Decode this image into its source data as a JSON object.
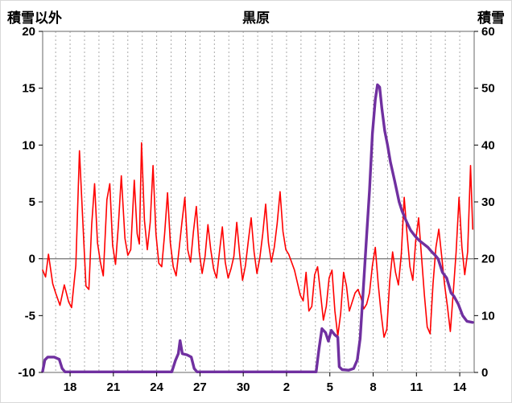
{
  "chart_data": {
    "type": "line",
    "title": "黒原",
    "grid": "vertical-dashed-daily",
    "legend": "none",
    "left_axis": {
      "label": "積雪以外",
      "min": -10,
      "max": 20,
      "ticks": [
        20,
        15,
        10,
        5,
        0,
        -5,
        -10
      ]
    },
    "right_axis": {
      "label": "積雪",
      "min": 0,
      "max": 60,
      "ticks": [
        60,
        50,
        40,
        30,
        20,
        10,
        0
      ]
    },
    "x_axis": {
      "domain": [
        16.1,
        46.0
      ],
      "gridline_step": 1,
      "tick_values": [
        18,
        21,
        24,
        27,
        30,
        33,
        36,
        39,
        42,
        45
      ],
      "tick_labels": [
        "18",
        "21",
        "24",
        "27",
        "30",
        "2",
        "5",
        "8",
        "11",
        "14"
      ]
    },
    "zero_line": {
      "value": 0,
      "axis": "left",
      "color": "#808080"
    },
    "colors": {
      "grid": "#aaaaaa",
      "border": "#808080",
      "red_series": "#ff0000",
      "purple_series": "#7030a0"
    },
    "series": [
      {
        "id": "non-snow-series",
        "name": "積雪以外",
        "axis": "left",
        "color": "#ff0000",
        "width": 1.6,
        "points": [
          [
            16.1,
            -1.0
          ],
          [
            16.3,
            -1.6
          ],
          [
            16.5,
            0.4
          ],
          [
            16.8,
            -2.2
          ],
          [
            17.0,
            -3.0
          ],
          [
            17.3,
            -4.1
          ],
          [
            17.6,
            -2.3
          ],
          [
            17.9,
            -3.8
          ],
          [
            18.1,
            -4.3
          ],
          [
            18.4,
            -0.6
          ],
          [
            18.65,
            9.5
          ],
          [
            18.9,
            2.8
          ],
          [
            19.1,
            -2.4
          ],
          [
            19.3,
            -2.7
          ],
          [
            19.5,
            3.0
          ],
          [
            19.7,
            6.6
          ],
          [
            19.9,
            1.4
          ],
          [
            20.1,
            -0.3
          ],
          [
            20.3,
            -1.5
          ],
          [
            20.55,
            5.2
          ],
          [
            20.75,
            6.6
          ],
          [
            20.95,
            1.2
          ],
          [
            21.15,
            -0.5
          ],
          [
            21.35,
            3.0
          ],
          [
            21.55,
            7.3
          ],
          [
            21.8,
            1.8
          ],
          [
            22.0,
            0.3
          ],
          [
            22.2,
            0.8
          ],
          [
            22.45,
            6.9
          ],
          [
            22.65,
            2.2
          ],
          [
            22.8,
            1.3
          ],
          [
            22.95,
            10.2
          ],
          [
            23.15,
            3.4
          ],
          [
            23.35,
            0.8
          ],
          [
            23.55,
            3.2
          ],
          [
            23.75,
            8.2
          ],
          [
            23.95,
            2.2
          ],
          [
            24.15,
            -0.4
          ],
          [
            24.35,
            -0.7
          ],
          [
            24.55,
            2.2
          ],
          [
            24.75,
            5.8
          ],
          [
            24.95,
            1.4
          ],
          [
            25.15,
            -0.7
          ],
          [
            25.35,
            -1.5
          ],
          [
            25.55,
            0.8
          ],
          [
            25.75,
            3.2
          ],
          [
            25.95,
            5.4
          ],
          [
            26.15,
            0.8
          ],
          [
            26.35,
            -0.3
          ],
          [
            26.55,
            2.4
          ],
          [
            26.75,
            4.6
          ],
          [
            26.95,
            0.6
          ],
          [
            27.15,
            -1.3
          ],
          [
            27.35,
            0.2
          ],
          [
            27.55,
            3.0
          ],
          [
            27.75,
            0.8
          ],
          [
            27.95,
            -0.9
          ],
          [
            28.15,
            -1.7
          ],
          [
            28.35,
            0.6
          ],
          [
            28.55,
            2.8
          ],
          [
            28.75,
            -0.3
          ],
          [
            28.95,
            -1.7
          ],
          [
            29.15,
            -0.9
          ],
          [
            29.35,
            0.2
          ],
          [
            29.55,
            3.2
          ],
          [
            29.75,
            0.4
          ],
          [
            29.95,
            -1.9
          ],
          [
            30.15,
            -0.6
          ],
          [
            30.35,
            1.6
          ],
          [
            30.55,
            3.6
          ],
          [
            30.75,
            0.6
          ],
          [
            30.95,
            -1.3
          ],
          [
            31.15,
            0.1
          ],
          [
            31.35,
            2.2
          ],
          [
            31.55,
            4.8
          ],
          [
            31.75,
            1.4
          ],
          [
            31.95,
            -0.3
          ],
          [
            32.15,
            1.0
          ],
          [
            32.35,
            3.1
          ],
          [
            32.55,
            5.9
          ],
          [
            32.75,
            2.4
          ],
          [
            32.95,
            0.8
          ],
          [
            33.15,
            0.4
          ],
          [
            33.35,
            -0.3
          ],
          [
            33.55,
            -1.0
          ],
          [
            33.75,
            -2.1
          ],
          [
            33.95,
            -3.2
          ],
          [
            34.15,
            -3.7
          ],
          [
            34.35,
            -1.2
          ],
          [
            34.55,
            -4.6
          ],
          [
            34.75,
            -4.2
          ],
          [
            34.95,
            -1.4
          ],
          [
            35.15,
            -0.7
          ],
          [
            35.35,
            -3.0
          ],
          [
            35.55,
            -5.4
          ],
          [
            35.75,
            -4.2
          ],
          [
            35.95,
            -1.7
          ],
          [
            36.15,
            -1.0
          ],
          [
            36.35,
            -4.6
          ],
          [
            36.55,
            -6.8
          ],
          [
            36.75,
            -4.8
          ],
          [
            36.95,
            -1.2
          ],
          [
            37.15,
            -2.4
          ],
          [
            37.35,
            -4.6
          ],
          [
            37.55,
            -3.8
          ],
          [
            37.75,
            -3.0
          ],
          [
            37.95,
            -2.7
          ],
          [
            38.15,
            -3.4
          ],
          [
            38.35,
            -4.4
          ],
          [
            38.55,
            -4.0
          ],
          [
            38.75,
            -3.0
          ],
          [
            38.95,
            -0.6
          ],
          [
            39.15,
            1.0
          ],
          [
            39.35,
            -2.2
          ],
          [
            39.55,
            -4.8
          ],
          [
            39.75,
            -6.9
          ],
          [
            39.95,
            -6.2
          ],
          [
            40.15,
            -2.0
          ],
          [
            40.35,
            0.6
          ],
          [
            40.55,
            -1.2
          ],
          [
            40.75,
            -2.3
          ],
          [
            40.95,
            0.4
          ],
          [
            41.15,
            5.4
          ],
          [
            41.35,
            2.2
          ],
          [
            41.55,
            -0.7
          ],
          [
            41.75,
            -1.9
          ],
          [
            41.95,
            1.6
          ],
          [
            42.15,
            3.6
          ],
          [
            42.35,
            0.2
          ],
          [
            42.55,
            -3.2
          ],
          [
            42.75,
            -6.0
          ],
          [
            42.95,
            -6.6
          ],
          [
            43.15,
            -2.2
          ],
          [
            43.35,
            1.0
          ],
          [
            43.55,
            2.6
          ],
          [
            43.75,
            0.2
          ],
          [
            43.95,
            -2.3
          ],
          [
            44.15,
            -4.2
          ],
          [
            44.35,
            -6.4
          ],
          [
            44.55,
            -3.0
          ],
          [
            44.75,
            0.6
          ],
          [
            44.95,
            5.4
          ],
          [
            45.15,
            1.0
          ],
          [
            45.35,
            -1.4
          ],
          [
            45.55,
            0.6
          ],
          [
            45.75,
            8.2
          ],
          [
            45.9,
            2.6
          ]
        ]
      },
      {
        "id": "snow-series",
        "name": "積雪",
        "axis": "right",
        "color": "#7030a0",
        "width": 3.4,
        "points": [
          [
            16.1,
            0.2
          ],
          [
            16.25,
            2.2
          ],
          [
            16.45,
            2.7
          ],
          [
            16.9,
            2.7
          ],
          [
            17.25,
            2.3
          ],
          [
            17.45,
            0.7
          ],
          [
            17.65,
            0.1
          ],
          [
            25.05,
            0.1
          ],
          [
            25.3,
            2.1
          ],
          [
            25.5,
            3.3
          ],
          [
            25.62,
            5.6
          ],
          [
            25.78,
            3.3
          ],
          [
            26.1,
            3.1
          ],
          [
            26.4,
            2.7
          ],
          [
            26.6,
            0.7
          ],
          [
            26.8,
            0.1
          ],
          [
            35.05,
            0.1
          ],
          [
            35.25,
            4.2
          ],
          [
            35.45,
            7.7
          ],
          [
            35.7,
            7.0
          ],
          [
            35.9,
            5.5
          ],
          [
            36.1,
            7.4
          ],
          [
            36.35,
            6.6
          ],
          [
            36.55,
            6.2
          ],
          [
            36.65,
            1.0
          ],
          [
            36.85,
            0.5
          ],
          [
            37.3,
            0.4
          ],
          [
            37.65,
            0.7
          ],
          [
            37.9,
            2.2
          ],
          [
            38.1,
            6.0
          ],
          [
            38.3,
            14.0
          ],
          [
            38.55,
            24.0
          ],
          [
            38.75,
            32.0
          ],
          [
            38.95,
            42.0
          ],
          [
            39.15,
            48.0
          ],
          [
            39.3,
            50.6
          ],
          [
            39.45,
            50.2
          ],
          [
            39.6,
            46.5
          ],
          [
            39.8,
            42.5
          ],
          [
            40.0,
            40.0
          ],
          [
            40.2,
            37.0
          ],
          [
            40.5,
            33.6
          ],
          [
            40.8,
            30.0
          ],
          [
            41.0,
            28.4
          ],
          [
            41.3,
            26.6
          ],
          [
            41.6,
            25.0
          ],
          [
            41.9,
            24.0
          ],
          [
            42.2,
            23.2
          ],
          [
            42.5,
            22.6
          ],
          [
            42.8,
            22.0
          ],
          [
            43.0,
            21.4
          ],
          [
            43.3,
            20.6
          ],
          [
            43.5,
            20.0
          ],
          [
            43.8,
            17.6
          ],
          [
            44.1,
            16.6
          ],
          [
            44.4,
            14.0
          ],
          [
            44.6,
            13.4
          ],
          [
            44.9,
            12.0
          ],
          [
            45.2,
            10.0
          ],
          [
            45.5,
            9.0
          ],
          [
            45.9,
            8.8
          ]
        ]
      }
    ]
  }
}
